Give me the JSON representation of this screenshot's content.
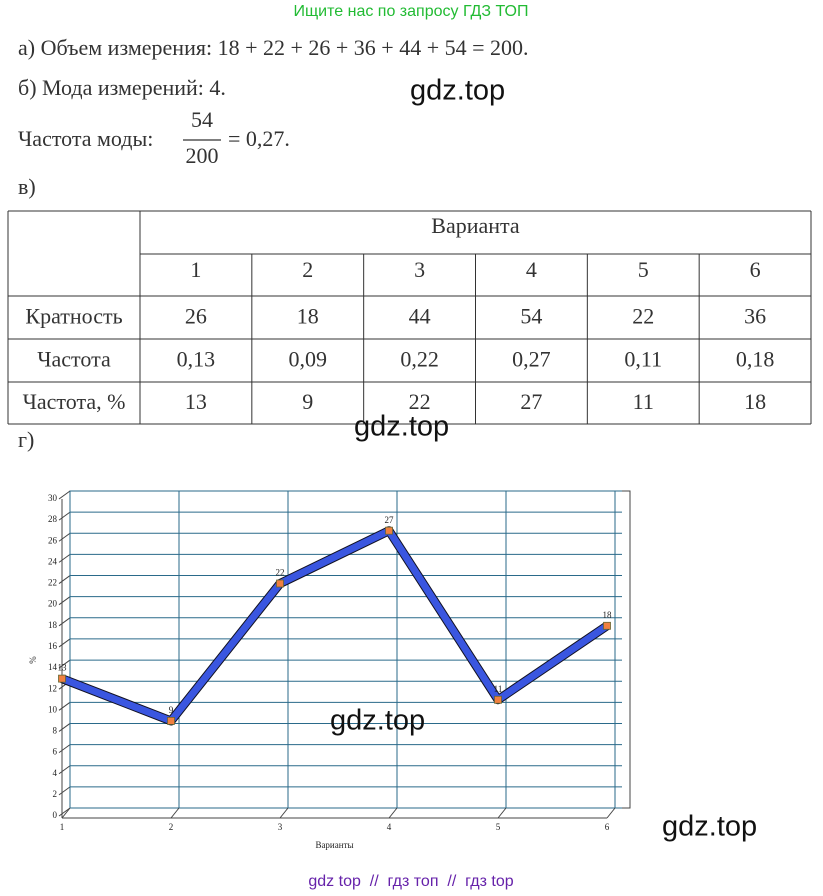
{
  "banner": "Ищите нас по запросу ГДЗ ТОП",
  "watermark": "gdz.top",
  "lines": {
    "a": "а) Объем измерения: 18 + 22 + 26 + 36 + 44 + 54 = 200.",
    "b": "б) Мода измерений: 4."
  },
  "mode_frequency": {
    "label": "Частота моды:",
    "numerator": "54",
    "denominator": "200",
    "result": "= 0,27."
  },
  "part_v": "в)",
  "table": {
    "header": "Варианта",
    "columns": [
      "1",
      "2",
      "3",
      "4",
      "5",
      "6"
    ],
    "rows": [
      [
        "Кратность",
        "26",
        "18",
        "44",
        "54",
        "22",
        "36"
      ],
      [
        "Частота",
        "0,13",
        "0,09",
        "0,22",
        "0,27",
        "0,11",
        "0,18"
      ],
      [
        "Частота, %",
        "13",
        "9",
        "22",
        "27",
        "11",
        "18"
      ]
    ]
  },
  "part_g": "г)",
  "chart_data": {
    "type": "line",
    "x": [
      1,
      2,
      3,
      4,
      5,
      6
    ],
    "values": [
      13,
      9,
      22,
      27,
      11,
      18
    ],
    "color": "#3a56e0",
    "marker_color": "#f08040",
    "xlabel": "Варианты",
    "ylabel": "%",
    "xlim": [
      1,
      6
    ],
    "xticks": [
      1,
      2,
      3,
      4,
      5,
      6
    ],
    "ylim": [
      0,
      30
    ],
    "yticks": [
      0,
      2,
      4,
      6,
      8,
      10,
      12,
      14,
      16,
      18,
      20,
      22,
      24,
      26,
      28,
      30
    ],
    "grid": true
  },
  "footer": "gdz top  //  гдз топ  //  гдз top"
}
